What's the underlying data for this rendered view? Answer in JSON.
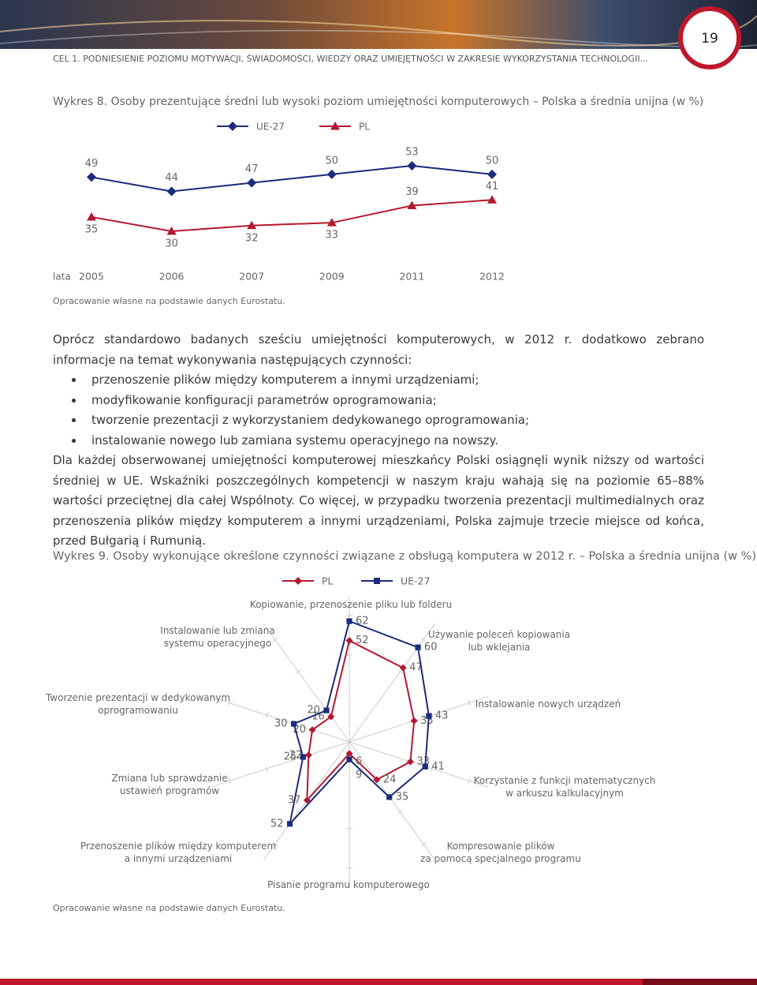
{
  "header": {
    "running_title": "CEL 1. PODNIESIENIE POZIOMU MOTYWACJI, ŚWIADOMOŚCI, WIEDZY ORAZ UMIEJĘTNOŚCI W ZAKRESIE WYKORZYSTANIA TECHNOLOGII...",
    "page_number": "19"
  },
  "body": {
    "intro": "Oprócz standardowo badanych sześciu umiejętności komputerowych, w 2012 r. dodatkowo zebrano informacje na temat wykonywania następujących czynności:",
    "bullets": [
      "przenoszenie plików między komputerem a innymi urządzeniami;",
      "modyfikowanie konfiguracji parametrów oprogramowania;",
      "tworzenie prezentacji z wykorzystaniem dedykowanego oprogramowania;",
      "instalowanie nowego lub zamiana systemu operacyjnego na nowszy."
    ],
    "paragraph": "Dla każdej obserwowanej umiejętności komputerowej mieszkańcy Polski osiągnęli wynik niższy od wartości średniej w UE. Wskaźniki poszczególnych kompetencji w naszym kraju wahają się na poziomie 65–88% wartości przeciętnej dla całej Wspólnoty. Co więcej, w przypadku tworzenia prezentacji multimedialnych oraz przenoszenia plików między komputerem a innymi urządzeniami, Polska zajmuje trzecie miejsce od końca, przed Bułgarią i Rumunią."
  },
  "chart_data": [
    {
      "type": "line",
      "title": "Wykres 8. Osoby prezentujące średni lub wysoki poziom umiejętności komputerowych – Polska a średnia unijna (w %)",
      "x_label": "lata",
      "categories": [
        "2005",
        "2006",
        "2007",
        "2009",
        "2011",
        "2012"
      ],
      "series": [
        {
          "name": "UE-27",
          "color": "#1c2b7a",
          "marker": "diamond",
          "values": [
            49,
            44,
            47,
            50,
            53,
            50
          ]
        },
        {
          "name": "PL",
          "color": "#b3192e",
          "marker": "triangle",
          "values": [
            35,
            30,
            32,
            33,
            39,
            41
          ]
        }
      ],
      "source": "Opracowanie własne na podstawie danych Eurostatu."
    },
    {
      "type": "radar",
      "title": "Wykres 9. Osoby wykonujące określone czynności związane z obsługą komputera w 2012 r. – Polska a średnia unijna (w %)",
      "categories": [
        "Kopiowanie, przenoszenie pliku lub folderu",
        "Używanie poleceń kopiowania\nlub wklejania",
        "Instalowanie nowych urządzeń",
        "Korzystanie z funkcji matematycznych\nw arkuszu kalkulacyjnym",
        "Kompresowanie plików\nza pomocą specjalnego programu",
        "Pisanie programu komputerowego",
        "Przenoszenie plików między komputerem\na innymi urządzeniami",
        "Zmiana lub sprawdzanie\nustawień programów",
        "Tworzenie prezentacji w dedykowanym\noprogramowaniu",
        "Instalowanie lub zmiana\nsystemu operacyjnego"
      ],
      "series": [
        {
          "name": "PL",
          "color": "#b3192e",
          "marker": "diamond",
          "values": [
            52,
            47,
            35,
            33,
            24,
            6,
            37,
            22,
            20,
            16
          ]
        },
        {
          "name": "UE-27",
          "color": "#1c2b7a",
          "marker": "square",
          "values": [
            62,
            60,
            43,
            41,
            35,
            9,
            52,
            25,
            30,
            20
          ]
        }
      ],
      "source": "Opracowanie własne na podstawie danych Eurostatu."
    }
  ]
}
